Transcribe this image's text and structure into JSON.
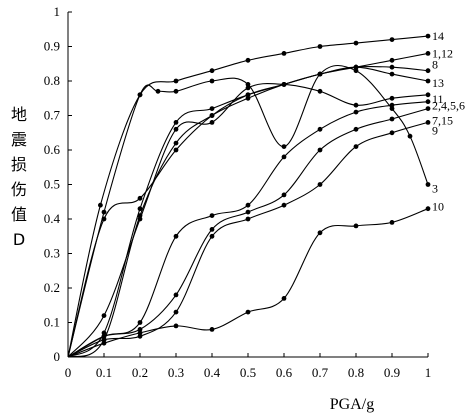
{
  "chart_data": {
    "type": "line",
    "xlabel": "PGA/g",
    "ylabel": "地震损伤值D",
    "ylabel_chars": [
      "地",
      "震",
      "损",
      "伤",
      "值",
      "D"
    ],
    "xlim": [
      0,
      1
    ],
    "ylim": [
      0,
      1
    ],
    "xticks": [
      "0",
      "0.1",
      "0.2",
      "0.3",
      "0.4",
      "0.5",
      "0.6",
      "0.7",
      "0.8",
      "0.9",
      "1"
    ],
    "yticks": [
      "0",
      "0.1",
      "0.2",
      "0.3",
      "0.4",
      "0.5",
      "0.6",
      "0.7",
      "0.8",
      "0.9",
      "1"
    ],
    "grid": false,
    "series": [
      {
        "name": "14",
        "x": [
          0,
          0.09,
          0.2,
          0.3,
          0.4,
          0.5,
          0.6,
          0.7,
          0.8,
          0.9,
          1.0
        ],
        "y": [
          0,
          0.44,
          0.76,
          0.8,
          0.83,
          0.86,
          0.88,
          0.9,
          0.91,
          0.92,
          0.93
        ]
      },
      {
        "name": "1,12",
        "x": [
          0,
          0.1,
          0.2,
          0.3,
          0.4,
          0.5,
          0.6,
          0.7,
          0.8,
          0.9,
          1.0
        ],
        "y": [
          0,
          0.07,
          0.43,
          0.68,
          0.72,
          0.76,
          0.79,
          0.82,
          0.84,
          0.86,
          0.88
        ]
      },
      {
        "name": "8",
        "x": [
          0,
          0.1,
          0.2,
          0.3,
          0.4,
          0.5,
          0.6,
          0.7,
          0.8,
          0.9,
          1.0
        ],
        "y": [
          0,
          0.05,
          0.41,
          0.62,
          0.7,
          0.75,
          0.79,
          0.82,
          0.84,
          0.84,
          0.83
        ]
      },
      {
        "name": "13",
        "x": [
          0,
          0.1,
          0.2,
          0.3,
          0.4,
          0.5,
          0.6,
          0.7,
          0.8,
          0.9,
          1.0
        ],
        "y": [
          0,
          0.4,
          0.46,
          0.6,
          0.7,
          0.76,
          0.79,
          0.82,
          0.84,
          0.82,
          0.8
        ]
      },
      {
        "name": "11",
        "x": [
          0,
          0.1,
          0.2,
          0.3,
          0.4,
          0.5,
          0.6,
          0.7,
          0.8,
          0.9,
          1.0
        ],
        "y": [
          0,
          0.12,
          0.4,
          0.66,
          0.68,
          0.78,
          0.79,
          0.77,
          0.73,
          0.75,
          0.76
        ]
      },
      {
        "name": "2,4,5,6",
        "x": [
          0,
          0.1,
          0.2,
          0.3,
          0.4,
          0.5,
          0.6,
          0.7,
          0.8,
          0.9,
          1.0
        ],
        "y": [
          0,
          0.06,
          0.1,
          0.35,
          0.41,
          0.44,
          0.58,
          0.66,
          0.71,
          0.73,
          0.74
        ]
      },
      {
        "name": "7,15",
        "x": [
          0,
          0.1,
          0.2,
          0.3,
          0.4,
          0.5,
          0.6,
          0.7,
          0.8,
          0.9,
          1.0
        ],
        "y": [
          0,
          0.06,
          0.08,
          0.18,
          0.37,
          0.42,
          0.47,
          0.6,
          0.66,
          0.69,
          0.72
        ]
      },
      {
        "name": "9",
        "x": [
          0,
          0.1,
          0.2,
          0.3,
          0.4,
          0.5,
          0.6,
          0.7,
          0.8,
          0.9,
          1.0
        ],
        "y": [
          0,
          0.05,
          0.06,
          0.13,
          0.35,
          0.4,
          0.44,
          0.5,
          0.61,
          0.65,
          0.68
        ]
      },
      {
        "name": "3",
        "x": [
          0,
          0.1,
          0.2,
          0.25,
          0.3,
          0.4,
          0.5,
          0.6,
          0.7,
          0.8,
          0.9,
          0.95,
          1.0
        ],
        "y": [
          0,
          0.42,
          0.76,
          0.77,
          0.77,
          0.8,
          0.79,
          0.61,
          0.82,
          0.83,
          0.72,
          0.64,
          0.5
        ]
      },
      {
        "name": "10",
        "x": [
          0,
          0.1,
          0.2,
          0.3,
          0.4,
          0.5,
          0.6,
          0.7,
          0.8,
          0.9,
          1.0
        ],
        "y": [
          0,
          0.04,
          0.07,
          0.09,
          0.08,
          0.13,
          0.17,
          0.36,
          0.38,
          0.39,
          0.43
        ]
      }
    ]
  }
}
